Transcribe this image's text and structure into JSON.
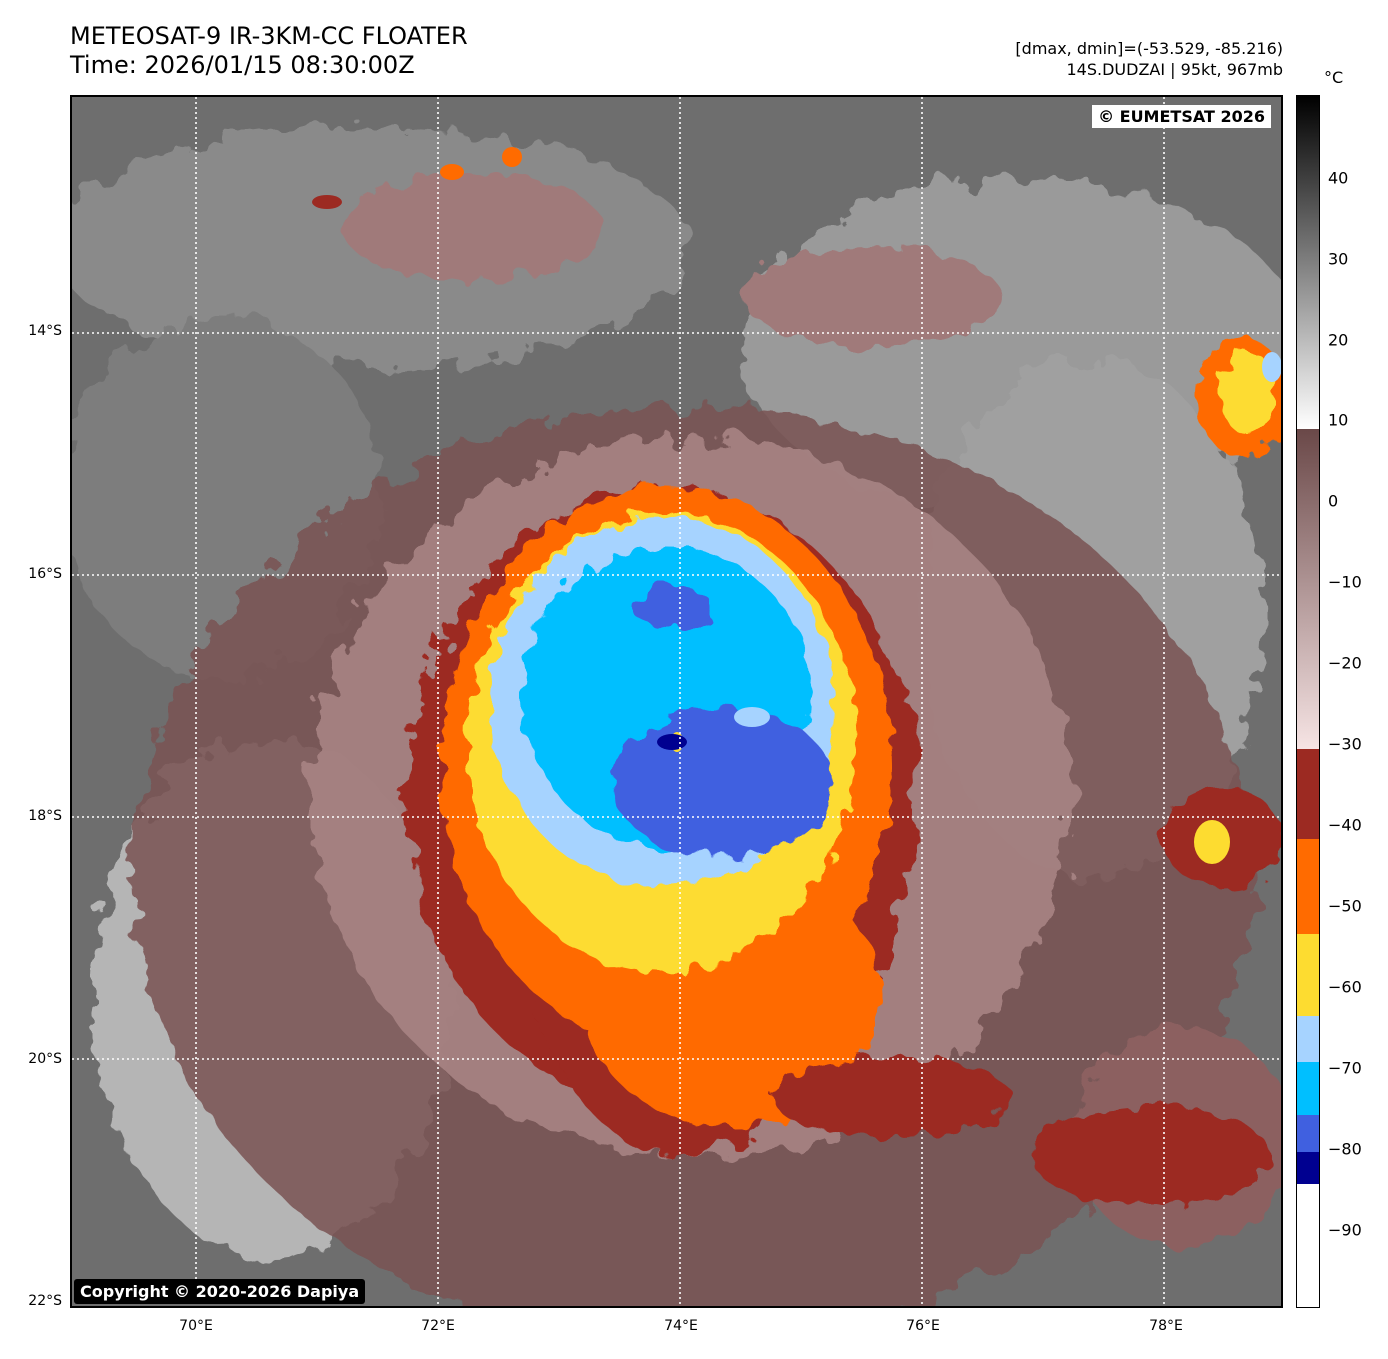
{
  "header": {
    "title_line1": "METEOSAT-9 IR-3KM-CC FLOATER",
    "title_line2": "Time: 2026/01/15 08:30:00Z",
    "range_text": "[dmax, dmin]=(-53.529, -85.216)",
    "storm_text": "14S.DUDZAI | 95kt, 967mb"
  },
  "map": {
    "watermark_top": "© EUMETSAT 2026",
    "watermark_bottom": "Copyright © 2020-2026 Dapiya",
    "lat_labels": [
      "14°S",
      "16°S",
      "18°S",
      "20°S",
      "22°S"
    ],
    "lon_labels": [
      "70°E",
      "72°E",
      "74°E",
      "76°E",
      "78°E"
    ],
    "gridlines": "dotted white"
  },
  "colorbar": {
    "unit": "°C",
    "labels": [
      "40",
      "30",
      "20",
      "10",
      "0",
      "−10",
      "−20",
      "−30",
      "−40",
      "−50",
      "−60",
      "−70",
      "−80",
      "−90"
    ],
    "colors": {
      "dark_red": "#9c2a22",
      "orange": "#ff6b00",
      "yellow": "#fddc30",
      "light_blue": "#a6d3ff",
      "cyan": "#00bfff",
      "royal_blue": "#4060e0",
      "navy": "#000090"
    }
  }
}
